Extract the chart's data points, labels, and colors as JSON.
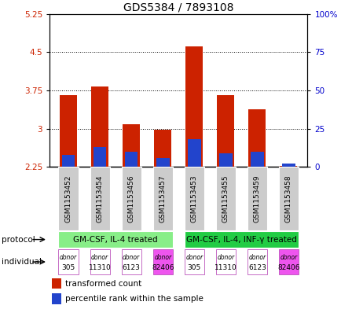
{
  "title": "GDS5384 / 7893108",
  "samples": [
    "GSM1153452",
    "GSM1153454",
    "GSM1153456",
    "GSM1153457",
    "GSM1153453",
    "GSM1153455",
    "GSM1153459",
    "GSM1153458"
  ],
  "transformed_count": [
    3.65,
    3.83,
    3.08,
    2.98,
    4.62,
    3.65,
    3.38,
    2.27
  ],
  "percentile_rank_pct": [
    8,
    13,
    10,
    6,
    18,
    9,
    10,
    2
  ],
  "bar_bottom": 2.25,
  "ylim_left": [
    2.25,
    5.25
  ],
  "ylim_right": [
    0,
    100
  ],
  "yticks_left": [
    2.25,
    3.0,
    3.75,
    4.5,
    5.25
  ],
  "ytick_labels_left": [
    "2.25",
    "3",
    "3.75",
    "4.5",
    "5.25"
  ],
  "yticks_right": [
    0,
    25,
    50,
    75,
    100
  ],
  "ytick_labels_right": [
    "0",
    "25",
    "50",
    "75",
    "100%"
  ],
  "hlines": [
    3.0,
    3.75,
    4.5
  ],
  "red_color": "#cc2200",
  "blue_color": "#2244cc",
  "protocol_groups": [
    {
      "label": "GM-CSF, IL-4 treated",
      "start": 0,
      "end": 3,
      "color": "#88ee88"
    },
    {
      "label": "GM-CSF, IL-4, INF-γ treated",
      "start": 4,
      "end": 7,
      "color": "#22cc44"
    }
  ],
  "individuals": [
    "305",
    "11310",
    "6123",
    "82406",
    "305",
    "11310",
    "6123",
    "82406"
  ],
  "individual_colors": [
    "#ffffff",
    "#ffffff",
    "#ffffff",
    "#ee55ee",
    "#ffffff",
    "#ffffff",
    "#ffffff",
    "#ee55ee"
  ],
  "bar_width": 0.55,
  "sample_bg_color": "#cccccc",
  "left_label_color": "#cc2200",
  "right_label_color": "#0000cc",
  "title_fontsize": 10,
  "tick_fontsize": 7.5,
  "annotation_fontsize": 7
}
